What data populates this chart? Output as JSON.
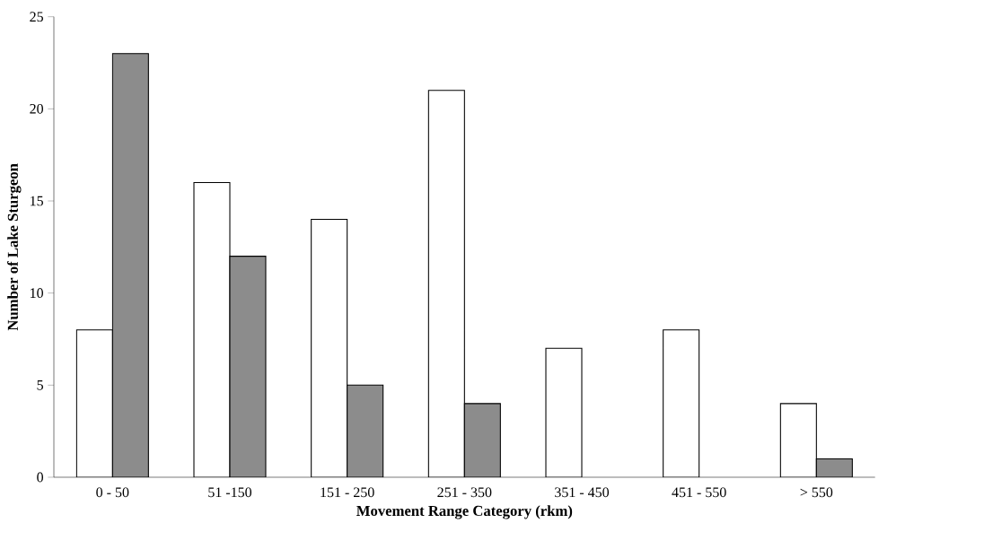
{
  "chart_data": {
    "type": "bar",
    "xlabel": "Movement Range Category (rkm)",
    "ylabel": "Number of Lake Sturgeon",
    "categories": [
      "0 - 50",
      "51 -150",
      "151 - 250",
      "251 - 350",
      "351 - 450",
      "451 - 550",
      "> 550"
    ],
    "series": [
      {
        "color": "#ffffff",
        "values": [
          8,
          16,
          14,
          21,
          7,
          8,
          4
        ]
      },
      {
        "color": "#8c8c8c",
        "values": [
          23,
          12,
          5,
          4,
          0,
          0,
          1
        ]
      }
    ],
    "ylim": [
      0,
      25
    ],
    "yticks": [
      0,
      5,
      10,
      15,
      20,
      25
    ],
    "grid": false
  }
}
